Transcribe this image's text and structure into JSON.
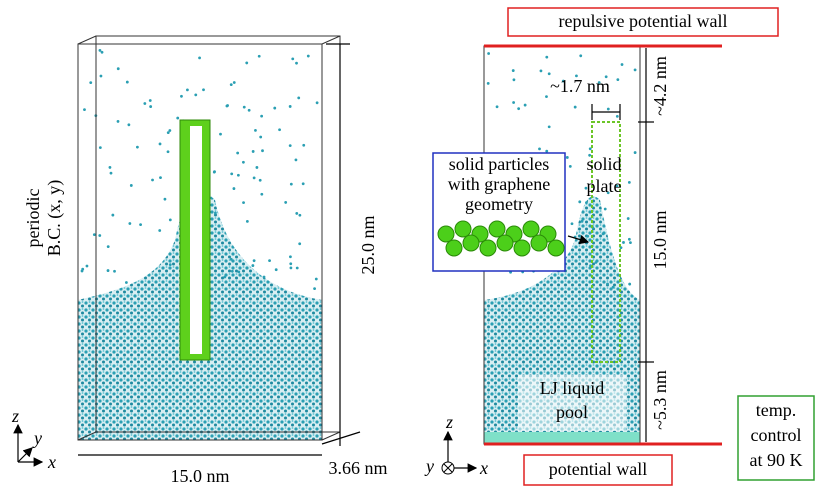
{
  "left_panel": {
    "bc_label": [
      "periodic",
      "B.C. (x, y)"
    ],
    "height_label": "25.0 nm",
    "width_label": "15.0 nm",
    "depth_label": "3.66 nm",
    "axes": {
      "z": "z",
      "y": "y",
      "x": "x"
    }
  },
  "right_panel": {
    "top_wall_label": "repulsive potential wall",
    "plate_width_label": "~1.7 nm",
    "top_gap_label": "~4.2 nm",
    "solid_particles_label": [
      "solid particles",
      "with graphene",
      "geometry"
    ],
    "plate_label": [
      "solid",
      "plate"
    ],
    "plate_height_label": "15.0 nm",
    "bottom_gap_label": "~5.3 nm",
    "pool_label": [
      "LJ liquid",
      "pool"
    ],
    "temp_control_label": [
      "temp.",
      "control",
      "at 90 K"
    ],
    "bottom_wall_label": "potential wall",
    "axes": {
      "z": "z",
      "y": "y",
      "x": "x"
    }
  }
}
